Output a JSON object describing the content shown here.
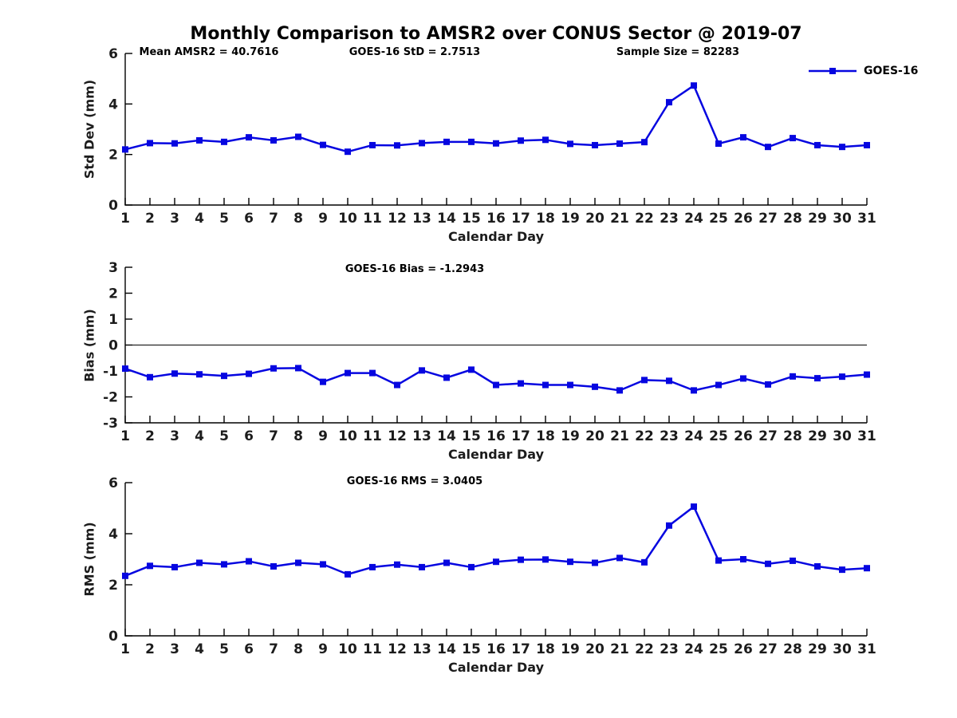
{
  "title": "Monthly Comparison to AMSR2 over CONUS Sector @ 2019-07",
  "xlabel": "Calendar Day",
  "legend": {
    "label": "GOES-16",
    "color": "#0606E0"
  },
  "chart_data": [
    {
      "type": "line",
      "panel": "std-dev",
      "ylabel": "Std Dev (mm)",
      "ylim": [
        0,
        6
      ],
      "yticks": [
        0,
        2,
        4,
        6
      ],
      "xlabel": "Calendar Day",
      "annotations": [
        "Mean AMSR2 = 40.7616",
        "GOES-16 StD = 2.7513",
        "Sample Size = 82283"
      ],
      "zero_line": false,
      "x": [
        1,
        2,
        3,
        4,
        5,
        6,
        7,
        8,
        9,
        10,
        11,
        12,
        13,
        14,
        15,
        16,
        17,
        18,
        19,
        20,
        21,
        22,
        23,
        24,
        25,
        26,
        27,
        28,
        29,
        30,
        31
      ],
      "series": [
        {
          "name": "GOES-16",
          "color": "#0606E0",
          "marker": "square",
          "values": [
            2.2,
            2.45,
            2.44,
            2.56,
            2.5,
            2.68,
            2.56,
            2.7,
            2.38,
            2.11,
            2.37,
            2.36,
            2.45,
            2.5,
            2.5,
            2.44,
            2.55,
            2.58,
            2.42,
            2.37,
            2.43,
            2.49,
            4.07,
            4.73,
            2.43,
            2.68,
            2.3,
            2.65,
            2.37,
            2.3,
            2.37
          ]
        }
      ]
    },
    {
      "type": "line",
      "panel": "bias",
      "ylabel": "Bias (mm)",
      "ylim": [
        -3,
        3
      ],
      "yticks": [
        -3,
        -2,
        -1,
        0,
        1,
        2,
        3
      ],
      "xlabel": "Calendar Day",
      "annotations": [
        "GOES-16 Bias = -1.2943"
      ],
      "zero_line": true,
      "x": [
        1,
        2,
        3,
        4,
        5,
        6,
        7,
        8,
        9,
        10,
        11,
        12,
        13,
        14,
        15,
        16,
        17,
        18,
        19,
        20,
        21,
        22,
        23,
        24,
        25,
        26,
        27,
        28,
        29,
        30,
        31
      ],
      "series": [
        {
          "name": "GOES-16",
          "color": "#0606E0",
          "marker": "square",
          "values": [
            -0.91,
            -1.24,
            -1.1,
            -1.13,
            -1.19,
            -1.11,
            -0.9,
            -0.89,
            -1.42,
            -1.08,
            -1.08,
            -1.54,
            -0.98,
            -1.26,
            -0.95,
            -1.54,
            -1.48,
            -1.54,
            -1.54,
            -1.61,
            -1.75,
            -1.35,
            -1.38,
            -1.75,
            -1.54,
            -1.29,
            -1.52,
            -1.21,
            -1.28,
            -1.22,
            -1.14
          ]
        }
      ]
    },
    {
      "type": "line",
      "panel": "rms",
      "ylabel": "RMS (mm)",
      "ylim": [
        0,
        6
      ],
      "yticks": [
        0,
        2,
        4,
        6
      ],
      "xlabel": "Calendar Day",
      "annotations": [
        "GOES-16 RMS = 3.0405"
      ],
      "zero_line": false,
      "x": [
        1,
        2,
        3,
        4,
        5,
        6,
        7,
        8,
        9,
        10,
        11,
        12,
        13,
        14,
        15,
        16,
        17,
        18,
        19,
        20,
        21,
        22,
        23,
        24,
        25,
        26,
        27,
        28,
        29,
        30,
        31
      ],
      "series": [
        {
          "name": "GOES-16",
          "color": "#0606E0",
          "marker": "square",
          "values": [
            2.35,
            2.74,
            2.69,
            2.86,
            2.8,
            2.92,
            2.72,
            2.86,
            2.8,
            2.41,
            2.69,
            2.79,
            2.69,
            2.86,
            2.69,
            2.9,
            2.98,
            2.99,
            2.9,
            2.86,
            3.05,
            2.88,
            4.32,
            5.06,
            2.95,
            3.0,
            2.82,
            2.94,
            2.72,
            2.59,
            2.65
          ]
        }
      ]
    }
  ]
}
